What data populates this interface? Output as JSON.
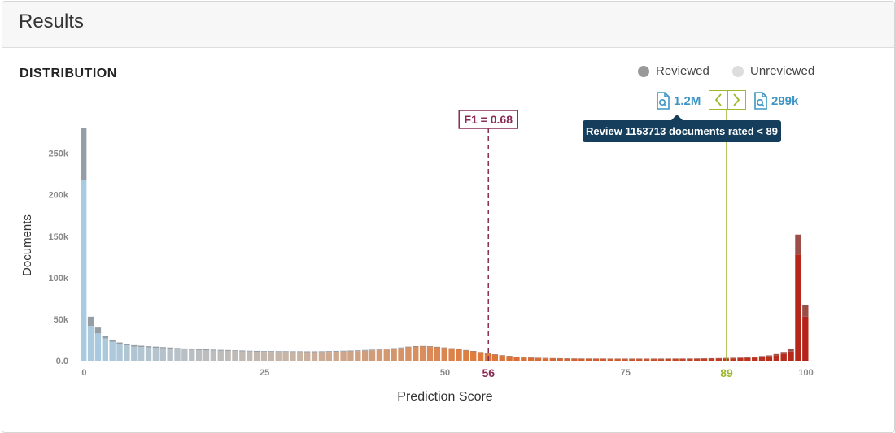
{
  "header": {
    "title": "Results"
  },
  "section": {
    "title": "DISTRIBUTION"
  },
  "legend": {
    "reviewed": {
      "label": "Reviewed",
      "color": "#999999"
    },
    "unreviewed": {
      "label": "Unreviewed",
      "color": "#dddddd"
    }
  },
  "toolbar": {
    "below_count": "1.2M",
    "above_count": "299k",
    "prev_icon": "chevron-left-icon",
    "next_icon": "chevron-right-icon",
    "search_icon": "document-search-icon",
    "accent_color": "#3c95c4",
    "threshold_color": "#9cb82f"
  },
  "tooltip": {
    "text": "Review 1153713 documents rated < 89"
  },
  "chart_data": {
    "type": "bar",
    "title": "",
    "xlabel": "Prediction Score",
    "ylabel": "Documents",
    "xlim": [
      0,
      100
    ],
    "ylim": [
      0,
      280000
    ],
    "x_ticks": [
      "0",
      "25",
      "50",
      "75",
      "100"
    ],
    "y_ticks": [
      "0.0",
      "50k",
      "100k",
      "150k",
      "200k",
      "250k"
    ],
    "f1_marker": {
      "label": "F1 = 0.68",
      "score": 56,
      "score_label": "56",
      "color": "#8a2b55"
    },
    "threshold_marker": {
      "score": 89,
      "score_label": "89",
      "color": "#9cb82f"
    },
    "colors": {
      "low": "#a9cbe2",
      "mid": "#c9b3a3",
      "high_orange": "#e07a3a",
      "high": "#b52418"
    },
    "grid": false,
    "legend_position": "top-right",
    "x": [
      0,
      1,
      2,
      3,
      4,
      5,
      6,
      7,
      8,
      9,
      10,
      11,
      12,
      13,
      14,
      15,
      16,
      17,
      18,
      19,
      20,
      21,
      22,
      23,
      24,
      25,
      26,
      27,
      28,
      29,
      30,
      31,
      32,
      33,
      34,
      35,
      36,
      37,
      38,
      39,
      40,
      41,
      42,
      43,
      44,
      45,
      46,
      47,
      48,
      49,
      50,
      51,
      52,
      53,
      54,
      55,
      56,
      57,
      58,
      59,
      60,
      61,
      62,
      63,
      64,
      65,
      66,
      67,
      68,
      69,
      70,
      71,
      72,
      73,
      74,
      75,
      76,
      77,
      78,
      79,
      80,
      81,
      82,
      83,
      84,
      85,
      86,
      87,
      88,
      89,
      90,
      91,
      92,
      93,
      94,
      95,
      96,
      97,
      98,
      99,
      100
    ],
    "series": [
      {
        "name": "Unreviewed",
        "values": [
          218000,
          42000,
          33000,
          27000,
          23000,
          20000,
          18500,
          17000,
          16500,
          16000,
          15500,
          15000,
          14500,
          14000,
          13500,
          13000,
          12800,
          12500,
          12300,
          12000,
          11800,
          11500,
          11300,
          11000,
          10800,
          10600,
          10600,
          10500,
          10500,
          10400,
          10400,
          10300,
          10300,
          10400,
          10600,
          10800,
          11000,
          11300,
          11600,
          12000,
          12400,
          13000,
          13600,
          14200,
          15000,
          16000,
          16600,
          16800,
          16500,
          15800,
          15000,
          14200,
          13200,
          12000,
          10800,
          9500,
          8200,
          7000,
          5800,
          5000,
          4200,
          3600,
          3200,
          2900,
          2700,
          2500,
          2400,
          2300,
          2200,
          2100,
          2100,
          2000,
          2000,
          1900,
          1900,
          1900,
          1900,
          1900,
          1900,
          1900,
          1900,
          2000,
          2000,
          2000,
          2100,
          2200,
          2300,
          2400,
          2500,
          2700,
          2800,
          3000,
          3300,
          3800,
          4500,
          5200,
          6500,
          8500,
          11000,
          128000,
          53000
        ]
      },
      {
        "name": "Reviewed",
        "values": [
          62000,
          11000,
          7000,
          3000,
          2500,
          2000,
          1800,
          1700,
          1600,
          1500,
          1500,
          1400,
          1400,
          1300,
          1300,
          1200,
          1200,
          1200,
          1100,
          1100,
          1100,
          1100,
          1000,
          1000,
          1000,
          1000,
          1000,
          1000,
          1000,
          1000,
          1000,
          1000,
          1000,
          1000,
          1000,
          1000,
          1000,
          1000,
          1000,
          1000,
          1000,
          1000,
          1000,
          1000,
          1000,
          1000,
          1000,
          1000,
          1000,
          1000,
          1000,
          900,
          900,
          900,
          900,
          900,
          900,
          800,
          800,
          800,
          700,
          700,
          700,
          600,
          600,
          600,
          600,
          600,
          600,
          600,
          600,
          600,
          600,
          600,
          600,
          600,
          600,
          600,
          600,
          600,
          600,
          600,
          600,
          600,
          600,
          600,
          600,
          600,
          600,
          600,
          700,
          700,
          800,
          900,
          1000,
          1200,
          1500,
          2000,
          3000,
          24000,
          14000
        ]
      }
    ]
  }
}
